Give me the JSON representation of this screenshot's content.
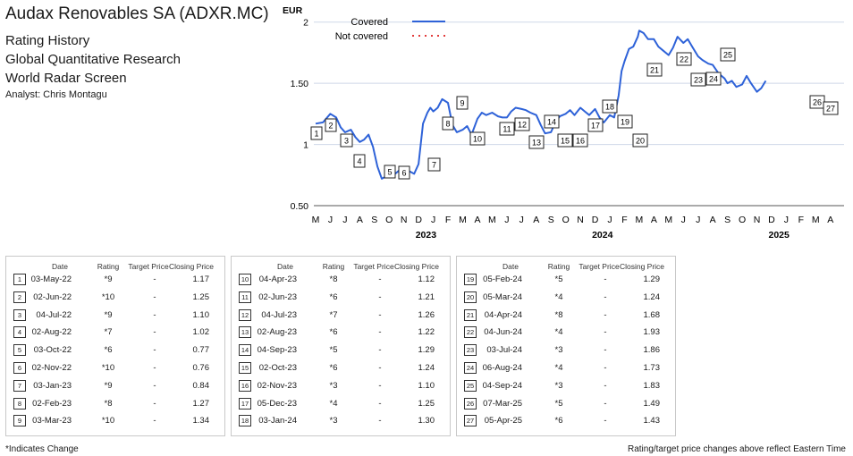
{
  "header": {
    "title": "Audax Renovables SA (ADXR.MC)",
    "lines": [
      "Rating History",
      "Global Quantitative Research",
      "World Radar Screen"
    ],
    "analyst": "Analyst: Chris Montagu"
  },
  "chart_data": {
    "type": "line",
    "ylabel": "EUR",
    "ylim": [
      0.5,
      2.1
    ],
    "yticks": [
      0.5,
      1,
      1.5,
      2
    ],
    "ytick_labels": [
      "0.50",
      "1",
      "1.50",
      "2"
    ],
    "grid": "horizontal",
    "legend_position": "top",
    "x_month_labels": [
      "M",
      "J",
      "J",
      "A",
      "S",
      "O",
      "N",
      "D",
      "J",
      "F",
      "M",
      "A",
      "M",
      "J",
      "J",
      "A",
      "S",
      "O",
      "N",
      "D",
      "J",
      "F",
      "M",
      "A",
      "M",
      "J",
      "J",
      "A",
      "S",
      "O",
      "N",
      "D",
      "J",
      "F",
      "M",
      "A"
    ],
    "x_year_labels": [
      "2023",
      "2024",
      "2025"
    ],
    "series": [
      {
        "name": "Covered",
        "style": "solid",
        "color": "#2e62d8",
        "points": [
          [
            0,
            1.17
          ],
          [
            0.5,
            1.18
          ],
          [
            1,
            1.25
          ],
          [
            1.4,
            1.22
          ],
          [
            1.7,
            1.14
          ],
          [
            2,
            1.1
          ],
          [
            2.4,
            1.12
          ],
          [
            2.7,
            1.06
          ],
          [
            3,
            1.02
          ],
          [
            3.3,
            1.04
          ],
          [
            3.6,
            1.08
          ],
          [
            3.9,
            0.98
          ],
          [
            4.2,
            0.82
          ],
          [
            4.5,
            0.72
          ],
          [
            4.8,
            0.74
          ],
          [
            5,
            0.76
          ],
          [
            5.3,
            0.75
          ],
          [
            5.7,
            0.79
          ],
          [
            6,
            0.8
          ],
          [
            6.4,
            0.78
          ],
          [
            6.7,
            0.76
          ],
          [
            7,
            0.84
          ],
          [
            7.3,
            1.17
          ],
          [
            7.6,
            1.26
          ],
          [
            7.8,
            1.3
          ],
          [
            8,
            1.27
          ],
          [
            8.3,
            1.3
          ],
          [
            8.6,
            1.37
          ],
          [
            9,
            1.34
          ],
          [
            9.3,
            1.16
          ],
          [
            9.6,
            1.1
          ],
          [
            10,
            1.12
          ],
          [
            10.3,
            1.15
          ],
          [
            10.6,
            1.08
          ],
          [
            11,
            1.21
          ],
          [
            11.3,
            1.26
          ],
          [
            11.6,
            1.24
          ],
          [
            12,
            1.26
          ],
          [
            12.4,
            1.23
          ],
          [
            12.7,
            1.22
          ],
          [
            13,
            1.22
          ],
          [
            13.3,
            1.27
          ],
          [
            13.6,
            1.3
          ],
          [
            14,
            1.29
          ],
          [
            14.3,
            1.28
          ],
          [
            14.6,
            1.26
          ],
          [
            15,
            1.24
          ],
          [
            15.3,
            1.16
          ],
          [
            15.6,
            1.09
          ],
          [
            16,
            1.1
          ],
          [
            16.3,
            1.18
          ],
          [
            16.6,
            1.23
          ],
          [
            17,
            1.25
          ],
          [
            17.3,
            1.28
          ],
          [
            17.6,
            1.24
          ],
          [
            18,
            1.3
          ],
          [
            18.3,
            1.27
          ],
          [
            18.6,
            1.24
          ],
          [
            19,
            1.29
          ],
          [
            19.3,
            1.22
          ],
          [
            19.6,
            1.18
          ],
          [
            20,
            1.24
          ],
          [
            20.3,
            1.22
          ],
          [
            20.6,
            1.4
          ],
          [
            20.8,
            1.6
          ],
          [
            21,
            1.68
          ],
          [
            21.3,
            1.78
          ],
          [
            21.6,
            1.8
          ],
          [
            21.9,
            1.88
          ],
          [
            22,
            1.93
          ],
          [
            22.3,
            1.91
          ],
          [
            22.6,
            1.86
          ],
          [
            23,
            1.86
          ],
          [
            23.3,
            1.8
          ],
          [
            23.6,
            1.77
          ],
          [
            24,
            1.73
          ],
          [
            24.3,
            1.79
          ],
          [
            24.6,
            1.88
          ],
          [
            25,
            1.83
          ],
          [
            25.3,
            1.86
          ],
          [
            25.6,
            1.8
          ],
          [
            26,
            1.72
          ],
          [
            26.3,
            1.69
          ],
          [
            26.7,
            1.66
          ],
          [
            27,
            1.65
          ],
          [
            27.4,
            1.58
          ],
          [
            27.8,
            1.54
          ],
          [
            28,
            1.5
          ],
          [
            28.3,
            1.52
          ],
          [
            28.6,
            1.47
          ],
          [
            29,
            1.49
          ],
          [
            29.3,
            1.56
          ],
          [
            29.6,
            1.5
          ],
          [
            30,
            1.43
          ],
          [
            30.3,
            1.46
          ],
          [
            30.6,
            1.52
          ]
        ]
      },
      {
        "name": "Not covered",
        "style": "dotted",
        "color": "#e23a3a",
        "points": []
      }
    ],
    "annotations": [
      {
        "n": "1",
        "x": 0,
        "y": 1.17
      },
      {
        "n": "2",
        "x": 1,
        "y": 1.25
      },
      {
        "n": "3",
        "x": 2,
        "y": 1.1
      },
      {
        "n": "4",
        "x": 3,
        "y": 1.02
      },
      {
        "n": "5",
        "x": 5,
        "y": 0.77
      },
      {
        "n": "6",
        "x": 6,
        "y": 0.76
      },
      {
        "n": "7",
        "x": 8,
        "y": 0.84
      },
      {
        "n": "8",
        "x": 9,
        "y": 1.27
      },
      {
        "n": "9",
        "x": 10,
        "y": 1.34
      },
      {
        "n": "10",
        "x": 11,
        "y": 1.12
      },
      {
        "n": "11",
        "x": 13,
        "y": 1.21
      },
      {
        "n": "12",
        "x": 14,
        "y": 1.26
      },
      {
        "n": "13",
        "x": 15,
        "y": 1.22
      },
      {
        "n": "14",
        "x": 16,
        "y": 1.29
      },
      {
        "n": "15",
        "x": 17,
        "y": 1.24
      },
      {
        "n": "16",
        "x": 18,
        "y": 1.1
      },
      {
        "n": "17",
        "x": 19,
        "y": 1.25
      },
      {
        "n": "18",
        "x": 20,
        "y": 1.3
      },
      {
        "n": "19",
        "x": 21,
        "y": 1.29
      },
      {
        "n": "20",
        "x": 22,
        "y": 1.24
      },
      {
        "n": "21",
        "x": 23,
        "y": 1.68
      },
      {
        "n": "22",
        "x": 25,
        "y": 1.93
      },
      {
        "n": "23",
        "x": 26,
        "y": 1.86
      },
      {
        "n": "24",
        "x": 27,
        "y": 1.73
      },
      {
        "n": "25",
        "x": 28,
        "y": 1.83
      },
      {
        "n": "26",
        "x": 34,
        "y": 1.49
      },
      {
        "n": "27",
        "x": 35,
        "y": 1.43
      }
    ]
  },
  "table": {
    "headers": [
      "Date",
      "Rating",
      "Target Price",
      "Closing Price"
    ],
    "rows": [
      {
        "n": "1",
        "date": "03-May-22",
        "rating": "*9",
        "target": "-",
        "close": "1.17"
      },
      {
        "n": "2",
        "date": "02-Jun-22",
        "rating": "*10",
        "target": "-",
        "close": "1.25"
      },
      {
        "n": "3",
        "date": "04-Jul-22",
        "rating": "*9",
        "target": "-",
        "close": "1.10"
      },
      {
        "n": "4",
        "date": "02-Aug-22",
        "rating": "*7",
        "target": "-",
        "close": "1.02"
      },
      {
        "n": "5",
        "date": "03-Oct-22",
        "rating": "*6",
        "target": "-",
        "close": "0.77"
      },
      {
        "n": "6",
        "date": "02-Nov-22",
        "rating": "*10",
        "target": "-",
        "close": "0.76"
      },
      {
        "n": "7",
        "date": "03-Jan-23",
        "rating": "*9",
        "target": "-",
        "close": "0.84"
      },
      {
        "n": "8",
        "date": "02-Feb-23",
        "rating": "*8",
        "target": "-",
        "close": "1.27"
      },
      {
        "n": "9",
        "date": "03-Mar-23",
        "rating": "*10",
        "target": "-",
        "close": "1.34"
      },
      {
        "n": "10",
        "date": "04-Apr-23",
        "rating": "*8",
        "target": "-",
        "close": "1.12"
      },
      {
        "n": "11",
        "date": "02-Jun-23",
        "rating": "*6",
        "target": "-",
        "close": "1.21"
      },
      {
        "n": "12",
        "date": "04-Jul-23",
        "rating": "*7",
        "target": "-",
        "close": "1.26"
      },
      {
        "n": "13",
        "date": "02-Aug-23",
        "rating": "*6",
        "target": "-",
        "close": "1.22"
      },
      {
        "n": "14",
        "date": "04-Sep-23",
        "rating": "*5",
        "target": "-",
        "close": "1.29"
      },
      {
        "n": "15",
        "date": "02-Oct-23",
        "rating": "*6",
        "target": "-",
        "close": "1.24"
      },
      {
        "n": "16",
        "date": "02-Nov-23",
        "rating": "*3",
        "target": "-",
        "close": "1.10"
      },
      {
        "n": "17",
        "date": "05-Dec-23",
        "rating": "*4",
        "target": "-",
        "close": "1.25"
      },
      {
        "n": "18",
        "date": "03-Jan-24",
        "rating": "*3",
        "target": "-",
        "close": "1.30"
      },
      {
        "n": "19",
        "date": "05-Feb-24",
        "rating": "*5",
        "target": "-",
        "close": "1.29"
      },
      {
        "n": "20",
        "date": "05-Mar-24",
        "rating": "*4",
        "target": "-",
        "close": "1.24"
      },
      {
        "n": "21",
        "date": "04-Apr-24",
        "rating": "*8",
        "target": "-",
        "close": "1.68"
      },
      {
        "n": "22",
        "date": "04-Jun-24",
        "rating": "*4",
        "target": "-",
        "close": "1.93"
      },
      {
        "n": "23",
        "date": "03-Jul-24",
        "rating": "*3",
        "target": "-",
        "close": "1.86"
      },
      {
        "n": "24",
        "date": "06-Aug-24",
        "rating": "*4",
        "target": "-",
        "close": "1.73"
      },
      {
        "n": "25",
        "date": "04-Sep-24",
        "rating": "*3",
        "target": "-",
        "close": "1.83"
      },
      {
        "n": "26",
        "date": "07-Mar-25",
        "rating": "*5",
        "target": "-",
        "close": "1.49"
      },
      {
        "n": "27",
        "date": "05-Apr-25",
        "rating": "*6",
        "target": "-",
        "close": "1.43"
      }
    ]
  },
  "footer": {
    "left": "*Indicates Change",
    "right": "Rating/target price changes above reflect Eastern Time"
  }
}
